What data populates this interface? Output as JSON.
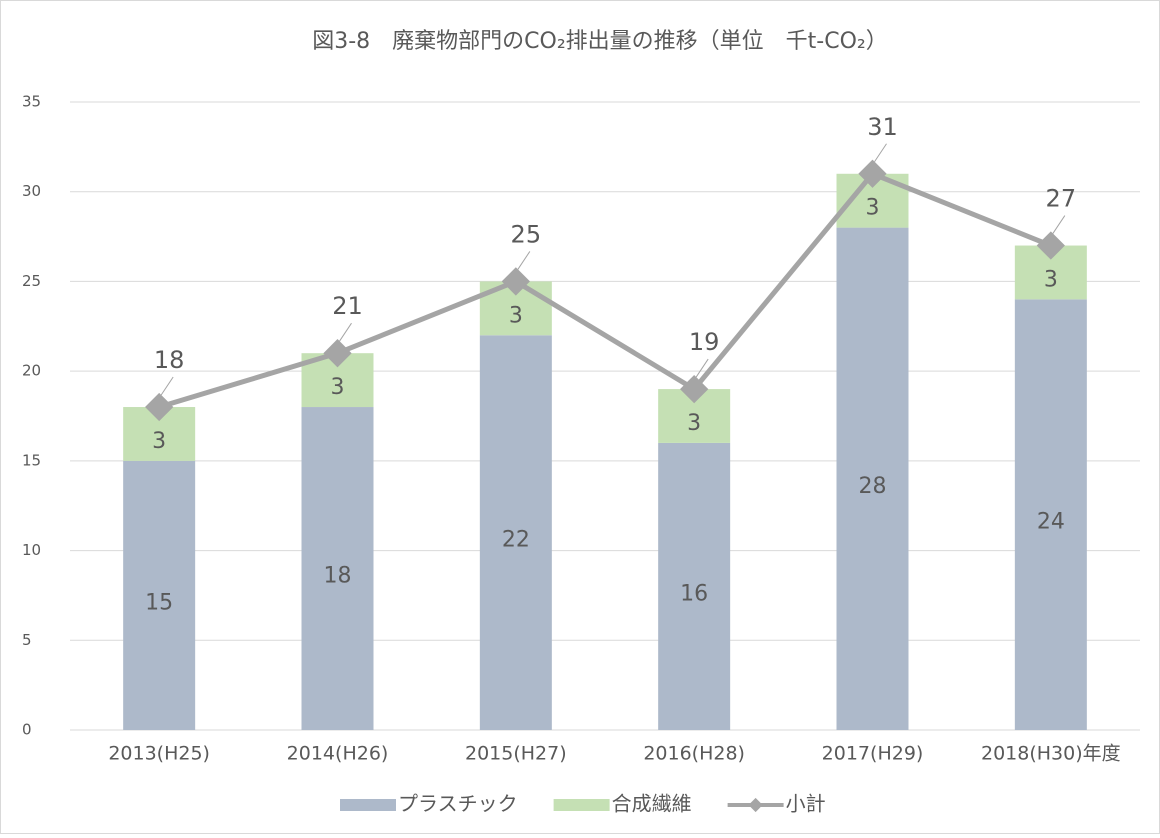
{
  "chart_data": {
    "type": "bar",
    "stacked": true,
    "title": "図3-8　廃棄物部門のCO₂排出量の推移（単位　千t-CO₂）",
    "categories": [
      "2013(H25)",
      "2014(H26)",
      "2015(H27)",
      "2016(H28)",
      "2017(H29)",
      "2018(H30)年度"
    ],
    "series": [
      {
        "name": "プラスチック",
        "color": "#adb9ca",
        "values": [
          15,
          18,
          22,
          16,
          28,
          24
        ]
      },
      {
        "name": "合成繊維",
        "color": "#c5e0b4",
        "values": [
          3,
          3,
          3,
          3,
          3,
          3
        ]
      },
      {
        "name": "小計",
        "type": "line",
        "color": "#a5a5a5",
        "values": [
          18,
          21,
          25,
          19,
          31,
          27
        ]
      }
    ],
    "ylim": [
      0,
      35
    ],
    "yticks": [
      0,
      5,
      10,
      15,
      20,
      25,
      30,
      35
    ],
    "grid": true,
    "legend": "bottom"
  }
}
